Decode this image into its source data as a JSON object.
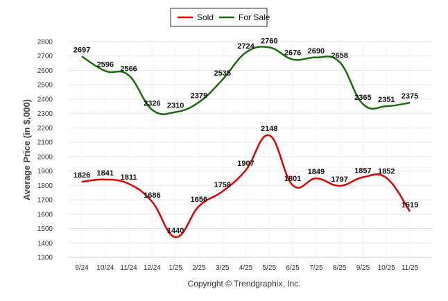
{
  "chart_data": {
    "type": "line",
    "title": "",
    "xlabel": "",
    "ylabel": "Average Price (in $,000)",
    "ylim": [
      1300,
      2800
    ],
    "ytick_step": 100,
    "grid": true,
    "legend_position": "top-center",
    "categories": [
      "9/24",
      "10/24",
      "11/24",
      "12/24",
      "1/25",
      "2/25",
      "3/25",
      "4/25",
      "5/25",
      "6/25",
      "7/25",
      "8/25",
      "9/25",
      "10/25",
      "11/25"
    ],
    "series": [
      {
        "name": "Sold",
        "color": "#e00000",
        "values": [
          1826,
          1841,
          1811,
          1686,
          1440,
          1656,
          1758,
          1907,
          2148,
          1801,
          1849,
          1797,
          1857,
          1852,
          1619
        ]
      },
      {
        "name": "For Sale",
        "color": "#1a6b0d",
        "values": [
          2697,
          2596,
          2566,
          2326,
          2310,
          2379,
          2535,
          2724,
          2760,
          2676,
          2690,
          2658,
          2365,
          2351,
          2375
        ]
      }
    ],
    "footer": "Copyright © Trendgraphix, Inc."
  }
}
